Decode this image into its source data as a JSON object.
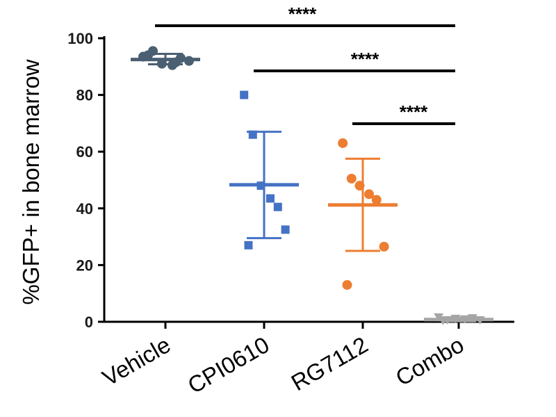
{
  "chart_data": {
    "type": "scatter",
    "ylabel": "%GFP+ in bone marrow",
    "xlabel": "",
    "ylim": [
      0,
      100
    ],
    "yticks": [
      0,
      20,
      40,
      60,
      80,
      100
    ],
    "categories": [
      "Vehicle",
      "CPI0610",
      "RG7112",
      "Combo"
    ],
    "series": [
      {
        "category": "Vehicle",
        "color": "#4a5f72",
        "marker": "circle",
        "points": [
          93.5,
          95.5,
          91,
          90.5,
          93,
          92,
          94,
          91.5
        ],
        "mean": 92.5,
        "sd_low": 90.8,
        "sd_high": 94.5
      },
      {
        "category": "CPI0610",
        "color": "#4472c4",
        "marker": "square",
        "points": [
          80,
          66,
          48,
          43.5,
          40.5,
          32.5,
          27
        ],
        "mean": 48.3,
        "sd_low": 29.5,
        "sd_high": 67
      },
      {
        "category": "RG7112",
        "color": "#ed7d31",
        "marker": "circle",
        "points": [
          63,
          50.5,
          48,
          45,
          43,
          26.5,
          13
        ],
        "mean": 41.2,
        "sd_low": 25,
        "sd_high": 57.5
      },
      {
        "category": "Combo",
        "color": "#a5a5a5",
        "marker": "triangle-down",
        "points": [
          1.5,
          0.5,
          1,
          0.8,
          1.2,
          0.5,
          0.3
        ],
        "mean": 0.8,
        "sd_low": 0.2,
        "sd_high": 1.5
      }
    ],
    "significance": [
      {
        "from": "Vehicle",
        "to": "Combo",
        "label": "****"
      },
      {
        "from": "CPI0610",
        "to": "Combo",
        "label": "****"
      },
      {
        "from": "RG7112",
        "to": "Combo",
        "label": "****"
      }
    ]
  }
}
